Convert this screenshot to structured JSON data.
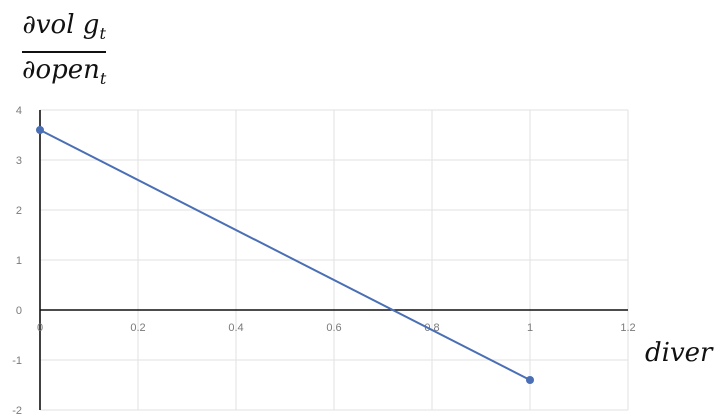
{
  "chart_data": {
    "type": "line",
    "ylabel": {
      "numerator": "∂vol g",
      "numerator_sub": "t",
      "denominator": "∂open",
      "denominator_sub": "t"
    },
    "xlabel": "diver",
    "xlim": [
      0,
      1.2
    ],
    "ylim": [
      -2,
      4
    ],
    "xticks": [
      "0",
      "0.2",
      "0.4",
      "0.6",
      "0.8",
      "1",
      "1.2"
    ],
    "yticks": [
      "-2",
      "-1",
      "0",
      "1",
      "2",
      "3",
      "4"
    ],
    "grid": true,
    "series": [
      {
        "x": [
          0,
          1
        ],
        "y": [
          3.6,
          -1.4
        ],
        "color": "#4a6fb5"
      }
    ]
  }
}
